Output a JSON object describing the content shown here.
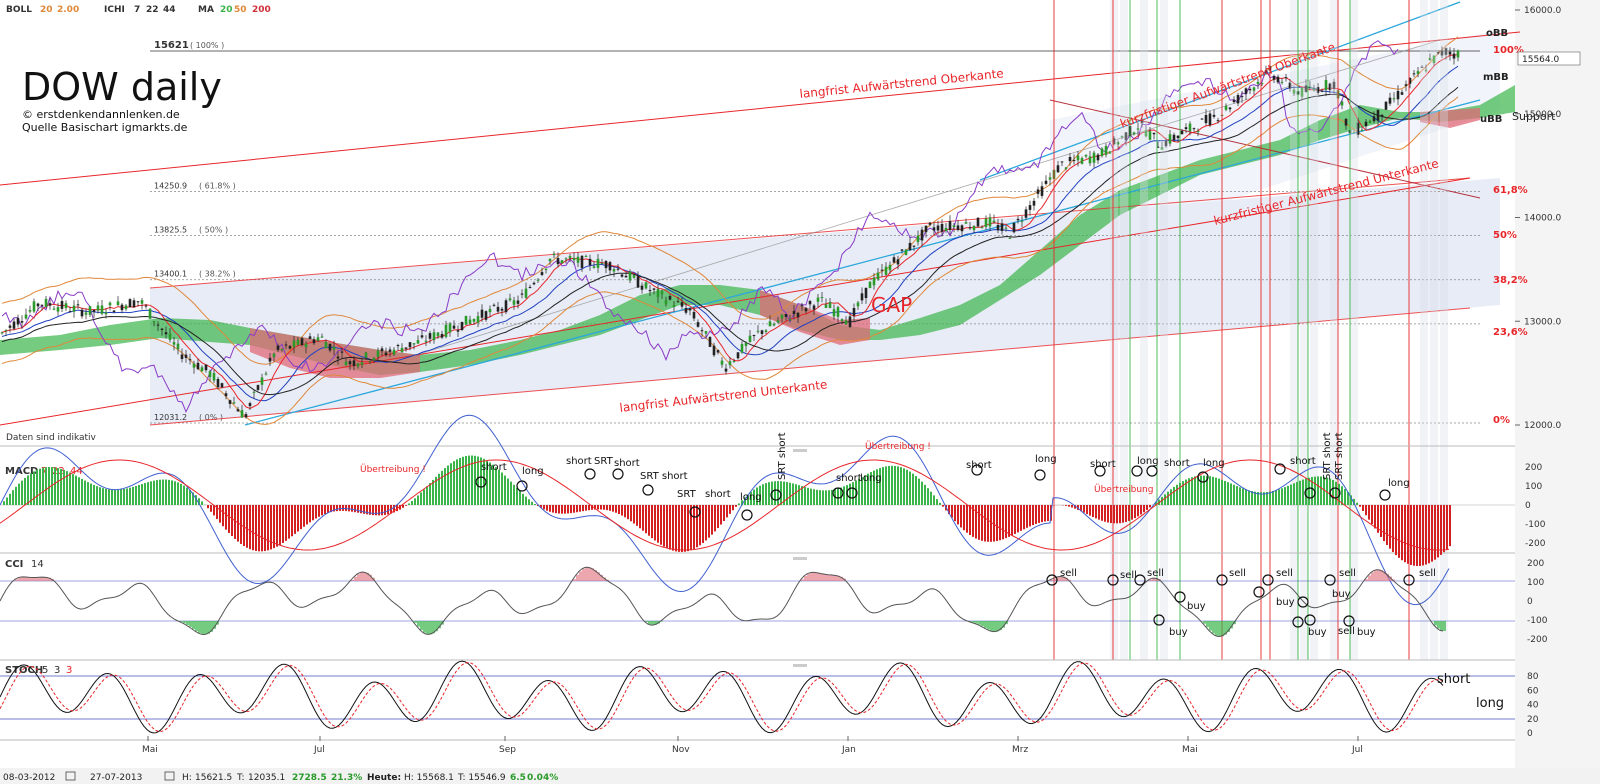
{
  "header": {
    "boll_label": "BOLL",
    "boll_p1": "20",
    "boll_p2": "2.00",
    "ichi_label": "ICHI",
    "ichi_p1": "7",
    "ichi_p2": "22",
    "ichi_p3": "44",
    "ma_label": "MA",
    "ma_p1": "20",
    "ma_p2": "50",
    "ma_p3": "200"
  },
  "title": {
    "main": "DOW daily",
    "copyright": "© erstdenkendannlenken.de",
    "source": "Quelle Basischart igmarkts.de"
  },
  "disclaimer": "Daten sind indikativ",
  "fib_levels": [
    {
      "value": 15621,
      "label_top": "15621",
      "pct_label": "( 100% )",
      "right_label": "100%"
    },
    {
      "value": 14250.9,
      "label_top": "14250.9",
      "pct_label": "( 61.8% )",
      "right_label": "61,8%"
    },
    {
      "value": 13825.5,
      "label_top": "13825.5",
      "pct_label": "( 50% )",
      "right_label": "50%"
    },
    {
      "value": 13400.1,
      "label_top": "13400.1",
      "pct_label": "( 38.2% )",
      "right_label": "38,2%"
    },
    {
      "value": 12974.7,
      "label_top": "",
      "pct_label": "",
      "right_label": "23,6%"
    },
    {
      "value": 12031.2,
      "label_top": "12031.2",
      "pct_label": "( 0% )",
      "right_label": "0%"
    }
  ],
  "price_axis": {
    "ticks": [
      "16000.0",
      "15000.0",
      "14000.0",
      "13000.0",
      "12000.0"
    ],
    "current": "15564.0"
  },
  "annotations_main": {
    "long_upper": "langfrist Aufwärtstrend Oberkante",
    "long_lower": "langfrist Aufwärtstrend Unterkante",
    "short_upper": "kurzfristiger Aufwärtstrend Oberkante",
    "short_lower": "kurzfristiger Aufwärtstrend Unterkante",
    "gap": "GAP",
    "obb": "oBB",
    "mbb": "mBB",
    "ubb": "uBB",
    "support": "Support"
  },
  "macd": {
    "label": "MACD",
    "p1": "7",
    "p2": "22",
    "p3": "44",
    "ticks": [
      "200",
      "100",
      "0",
      "-100",
      "-200"
    ],
    "uebertreibung": "Übertreibung !",
    "uebertreibung2": "Übertreibung",
    "signals": [
      {
        "text": "short"
      },
      {
        "text": "long"
      },
      {
        "text": "short"
      },
      {
        "text": "SRT"
      },
      {
        "text": "short"
      },
      {
        "text": "SRT short"
      },
      {
        "text": "SRT"
      },
      {
        "text": "short"
      },
      {
        "text": "long"
      },
      {
        "text": "SRT short"
      },
      {
        "text": "short"
      },
      {
        "text": "long"
      },
      {
        "text": "short"
      },
      {
        "text": "long"
      },
      {
        "text": "short"
      },
      {
        "text": "long"
      },
      {
        "text": "short"
      },
      {
        "text": "long"
      },
      {
        "text": "short"
      },
      {
        "text": "SRT short"
      },
      {
        "text": "SRT short"
      },
      {
        "text": "long"
      }
    ]
  },
  "cci": {
    "label": "CCI",
    "p1": "14",
    "ticks": [
      "200",
      "100",
      "0",
      "-100",
      "-200"
    ],
    "signals": [
      {
        "text": "sell"
      },
      {
        "text": "sell"
      },
      {
        "text": "sell"
      },
      {
        "text": "buy"
      },
      {
        "text": "buy"
      },
      {
        "text": "sell"
      },
      {
        "text": "buy"
      },
      {
        "text": "sell"
      },
      {
        "text": "buy"
      },
      {
        "text": "sell"
      },
      {
        "text": "buy"
      },
      {
        "text": "sell"
      },
      {
        "text": "buy"
      },
      {
        "text": "sell"
      }
    ]
  },
  "stoch": {
    "label": "STOCH",
    "p1": "5",
    "p2": "3",
    "p3": "3",
    "ticks": [
      "80",
      "60",
      "40",
      "20",
      "0"
    ],
    "short": "short",
    "long": "long"
  },
  "time_axis": [
    "Mai",
    "Jul",
    "Sep",
    "Nov",
    "Jan",
    "Mrz",
    "Mai",
    "Jul"
  ],
  "footer": {
    "start": "08-03-2012",
    "end": "27-07-2013",
    "h_label": "H:",
    "h": "15621.5",
    "t_label": "T:",
    "t": "12035.1",
    "chg": "2728.5",
    "chg_pct": "21.3%",
    "heute_label": "Heute:",
    "heute_h": "H: 15568.1",
    "heute_t": "T: 15546.9",
    "heute_chg": "6.5",
    "heute_pct": "0.04%"
  },
  "colors": {
    "accent_red": "#e8262a",
    "trend_blue": "#2aa7dc",
    "cloud_green": "#3bb54a",
    "cloud_red": "#e06a78",
    "bb_orange": "#e08a3c",
    "purple": "#8a3cc8",
    "channel_fill": "#e8ecf6"
  },
  "chart_data": {
    "type": "candlestick",
    "instrument": "DOW daily",
    "x_range": [
      "08-03-2012",
      "27-07-2013"
    ],
    "y_range": [
      11800,
      16100
    ],
    "close_path": [
      [
        "2012-03",
        13000
      ],
      [
        "2012-04",
        13200
      ],
      [
        "2012-05",
        12800
      ],
      [
        "2012-06",
        12100
      ],
      [
        "2012-07",
        12900
      ],
      [
        "2012-08",
        13100
      ],
      [
        "2012-09",
        13600
      ],
      [
        "2012-10",
        13300
      ],
      [
        "2012-11",
        12600
      ],
      [
        "2012-12",
        13100
      ],
      [
        "2013-01",
        13900
      ],
      [
        "2013-02",
        14000
      ],
      [
        "2013-03",
        14500
      ],
      [
        "2013-04",
        14700
      ],
      [
        "2013-05",
        15300
      ],
      [
        "2013-06",
        14700
      ],
      [
        "2013-07",
        15564
      ]
    ],
    "cci_levels": [
      -200,
      -100,
      0,
      100,
      200
    ],
    "stoch_levels": [
      0,
      20,
      40,
      60,
      80
    ],
    "macd_levels": [
      -200,
      -100,
      0,
      100,
      200
    ]
  }
}
